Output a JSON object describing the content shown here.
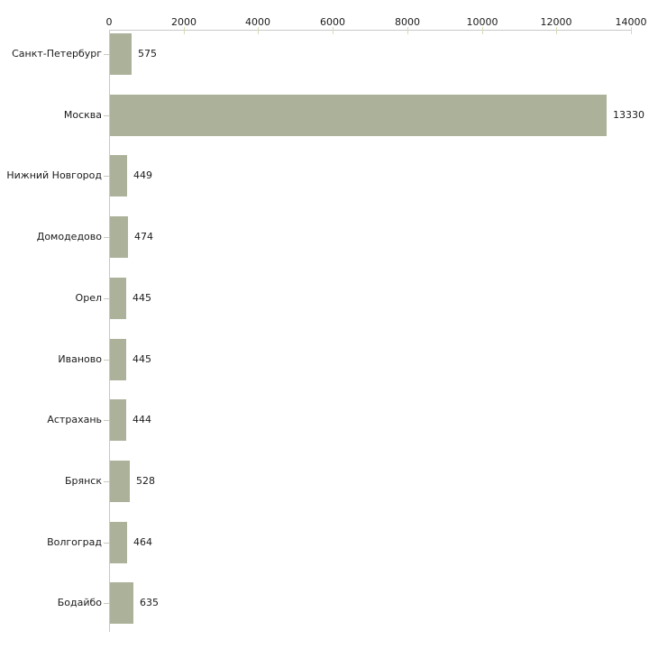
{
  "chart_data": {
    "type": "bar",
    "orientation": "horizontal",
    "title": "",
    "xlabel": "",
    "ylabel": "",
    "categories": [
      "Санкт-Петербург",
      "Москва",
      "Нижний Новгород",
      "Домодедово",
      "Орел",
      "Иваново",
      "Астрахань",
      "Брянск",
      "Волгоград",
      "Бодайбо"
    ],
    "values": [
      575,
      13330,
      449,
      474,
      445,
      445,
      444,
      528,
      464,
      635
    ],
    "value_labels": [
      "575",
      "13330",
      "449",
      "474",
      "445",
      "445",
      "444",
      "528",
      "464",
      "635"
    ],
    "xlim": [
      0,
      14000
    ],
    "x_tick_values": [
      0,
      2000,
      4000,
      6000,
      8000,
      10000,
      12000,
      14000
    ],
    "x_tick_labels": [
      "0",
      "2000",
      "4000",
      "6000",
      "8000",
      "10000",
      "12000",
      "14000"
    ],
    "x_axis_position": "top",
    "grid": false,
    "legend": "none",
    "value_labels_shown": true,
    "colors": {
      "bar_fill": "#acb29a",
      "axis_line": "#c8c8c8",
      "x_tick_mark": "#d8d9b6",
      "y_tick_mark": "#c9cabc",
      "text": "#1a1a1a",
      "background": "#ffffff"
    }
  }
}
